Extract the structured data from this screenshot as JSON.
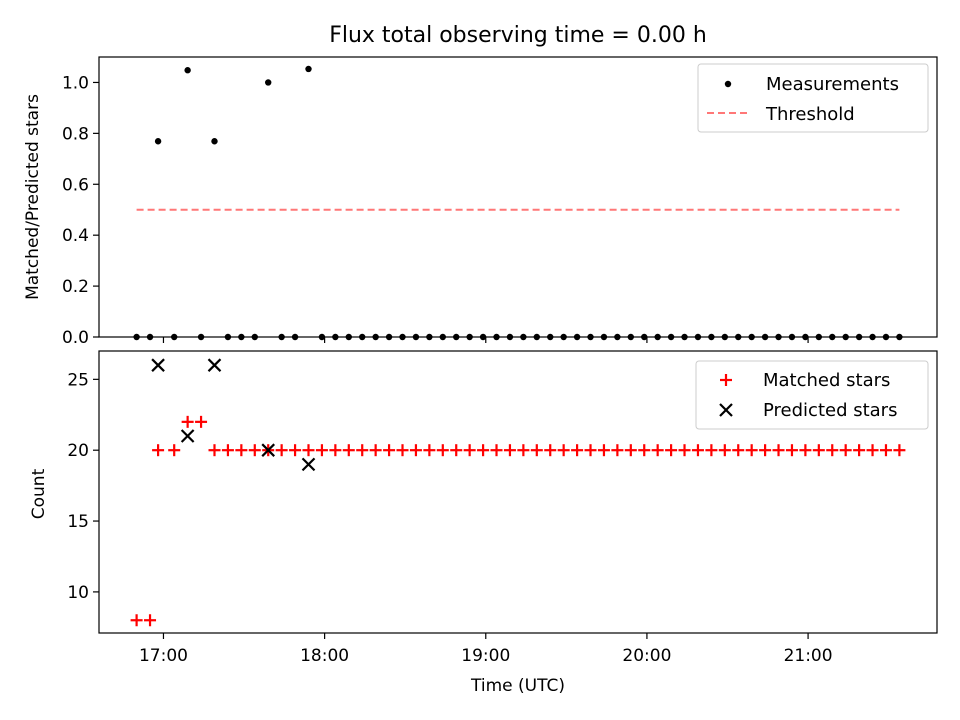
{
  "chart_data": [
    {
      "type": "scatter",
      "title": "Flux total observing time = 0.00 h",
      "xlabel": "",
      "ylabel": "Matched/Predicted stars",
      "xlim": [
        "16:36",
        "21:48"
      ],
      "ylim": [
        0,
        1.1
      ],
      "yticks": [
        "0.0",
        "0.2",
        "0.4",
        "0.6",
        "0.8",
        "1.0"
      ],
      "grid": false,
      "legend_position": "upper right",
      "series": [
        {
          "name": "Measurements",
          "kind": "scatter",
          "marker": "dot",
          "color": "#000000",
          "points": [
            [
              "16:50",
              0
            ],
            [
              "16:55",
              0
            ],
            [
              "16:58",
              0.769
            ],
            [
              "17:04",
              0
            ],
            [
              "17:09",
              1.048
            ],
            [
              "17:14",
              0
            ],
            [
              "17:19",
              0.769
            ],
            [
              "17:24",
              0
            ],
            [
              "17:29",
              0
            ],
            [
              "17:34",
              0
            ],
            [
              "17:39",
              1.0
            ],
            [
              "17:44",
              0
            ],
            [
              "17:49",
              0
            ],
            [
              "17:54",
              1.053
            ],
            [
              "17:59",
              0
            ],
            [
              "18:04",
              0
            ],
            [
              "18:09",
              0
            ],
            [
              "18:14",
              0
            ],
            [
              "18:19",
              0
            ],
            [
              "18:24",
              0
            ],
            [
              "18:29",
              0
            ],
            [
              "18:34",
              0
            ],
            [
              "18:39",
              0
            ],
            [
              "18:44",
              0
            ],
            [
              "18:49",
              0
            ],
            [
              "18:54",
              0
            ],
            [
              "18:59",
              0
            ],
            [
              "19:04",
              0
            ],
            [
              "19:09",
              0
            ],
            [
              "19:14",
              0
            ],
            [
              "19:19",
              0
            ],
            [
              "19:24",
              0
            ],
            [
              "19:29",
              0
            ],
            [
              "19:34",
              0
            ],
            [
              "19:39",
              0
            ],
            [
              "19:44",
              0
            ],
            [
              "19:49",
              0
            ],
            [
              "19:54",
              0
            ],
            [
              "19:59",
              0
            ],
            [
              "20:04",
              0
            ],
            [
              "20:09",
              0
            ],
            [
              "20:14",
              0
            ],
            [
              "20:19",
              0
            ],
            [
              "20:24",
              0
            ],
            [
              "20:29",
              0
            ],
            [
              "20:34",
              0
            ],
            [
              "20:39",
              0
            ],
            [
              "20:44",
              0
            ],
            [
              "20:49",
              0
            ],
            [
              "20:54",
              0
            ],
            [
              "20:59",
              0
            ],
            [
              "21:04",
              0
            ],
            [
              "21:09",
              0
            ],
            [
              "21:14",
              0
            ],
            [
              "21:19",
              0
            ],
            [
              "21:24",
              0
            ],
            [
              "21:29",
              0
            ],
            [
              "21:34",
              0
            ]
          ]
        },
        {
          "name": "Threshold",
          "kind": "line",
          "dash": true,
          "color": "#ff7777",
          "points": [
            [
              "16:50",
              0.5
            ],
            [
              "21:34",
              0.5
            ]
          ]
        }
      ]
    },
    {
      "type": "scatter",
      "title": "",
      "xlabel": "Time (UTC)",
      "ylabel": "Count",
      "xlim": [
        "16:36",
        "21:48"
      ],
      "ylim": [
        7.1,
        27
      ],
      "yticks": [
        "10",
        "15",
        "20",
        "25"
      ],
      "xticks": [
        "17:00",
        "18:00",
        "19:00",
        "20:00",
        "21:00"
      ],
      "grid": false,
      "legend_position": "upper right",
      "series": [
        {
          "name": "Matched stars",
          "kind": "scatter",
          "marker": "plus",
          "color": "#ff0000",
          "points": [
            [
              "16:50",
              8
            ],
            [
              "16:55",
              8
            ],
            [
              "16:58",
              20
            ],
            [
              "17:04",
              20
            ],
            [
              "17:09",
              22
            ],
            [
              "17:14",
              22
            ],
            [
              "17:19",
              20
            ],
            [
              "17:24",
              20
            ],
            [
              "17:29",
              20
            ],
            [
              "17:34",
              20
            ],
            [
              "17:39",
              20
            ],
            [
              "17:44",
              20
            ],
            [
              "17:49",
              20
            ],
            [
              "17:54",
              20
            ],
            [
              "17:59",
              20
            ],
            [
              "18:04",
              20
            ],
            [
              "18:09",
              20
            ],
            [
              "18:14",
              20
            ],
            [
              "18:19",
              20
            ],
            [
              "18:24",
              20
            ],
            [
              "18:29",
              20
            ],
            [
              "18:34",
              20
            ],
            [
              "18:39",
              20
            ],
            [
              "18:44",
              20
            ],
            [
              "18:49",
              20
            ],
            [
              "18:54",
              20
            ],
            [
              "18:59",
              20
            ],
            [
              "19:04",
              20
            ],
            [
              "19:09",
              20
            ],
            [
              "19:14",
              20
            ],
            [
              "19:19",
              20
            ],
            [
              "19:24",
              20
            ],
            [
              "19:29",
              20
            ],
            [
              "19:34",
              20
            ],
            [
              "19:39",
              20
            ],
            [
              "19:44",
              20
            ],
            [
              "19:49",
              20
            ],
            [
              "19:54",
              20
            ],
            [
              "19:59",
              20
            ],
            [
              "20:04",
              20
            ],
            [
              "20:09",
              20
            ],
            [
              "20:14",
              20
            ],
            [
              "20:19",
              20
            ],
            [
              "20:24",
              20
            ],
            [
              "20:29",
              20
            ],
            [
              "20:34",
              20
            ],
            [
              "20:39",
              20
            ],
            [
              "20:44",
              20
            ],
            [
              "20:49",
              20
            ],
            [
              "20:54",
              20
            ],
            [
              "20:59",
              20
            ],
            [
              "21:04",
              20
            ],
            [
              "21:09",
              20
            ],
            [
              "21:14",
              20
            ],
            [
              "21:19",
              20
            ],
            [
              "21:24",
              20
            ],
            [
              "21:29",
              20
            ],
            [
              "21:34",
              20
            ]
          ]
        },
        {
          "name": "Predicted stars",
          "kind": "scatter",
          "marker": "x",
          "color": "#000000",
          "points": [
            [
              "16:58",
              26
            ],
            [
              "17:09",
              21
            ],
            [
              "17:19",
              26
            ],
            [
              "17:39",
              20
            ],
            [
              "17:54",
              19
            ]
          ]
        }
      ]
    }
  ]
}
